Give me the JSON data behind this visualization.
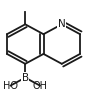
{
  "bg_color": "#ffffff",
  "line_color": "#1a1a1a",
  "line_width": 1.3,
  "bond_color": "#1a1a1a",
  "text_color": "#1a1a1a",
  "N_label": "N",
  "B_label": "B",
  "HO_left": "HO",
  "OH_right": "OH",
  "font_size_atom": 7.5,
  "font_size_sub": 7.0
}
